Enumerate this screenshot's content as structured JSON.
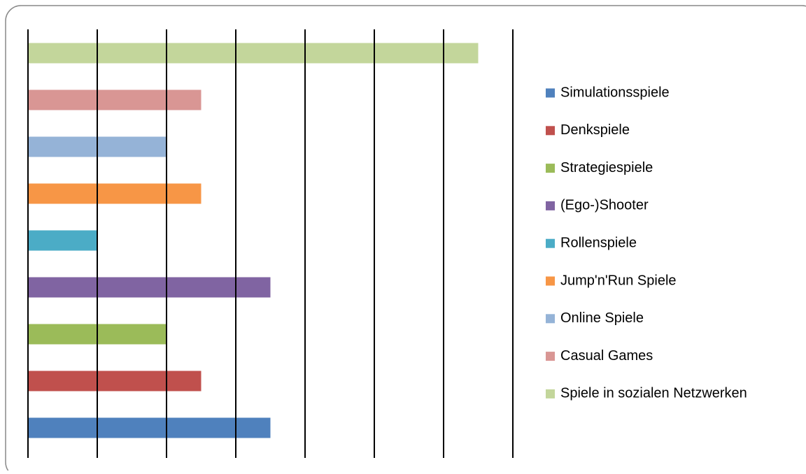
{
  "chart_data": {
    "type": "bar",
    "orientation": "horizontal",
    "series": [
      {
        "name": "Simulationsspiele",
        "color": "#4f81bd",
        "values": [
          3.5
        ]
      },
      {
        "name": "Denkspiele",
        "color": "#c0504d",
        "values": [
          2.5
        ]
      },
      {
        "name": "Strategiespiele",
        "color": "#9bbb59",
        "values": [
          2
        ]
      },
      {
        "name": "(Ego-)Shooter",
        "color": "#8064a2",
        "values": [
          3.5
        ]
      },
      {
        "name": "Rollenspiele",
        "color": "#4bacc6",
        "values": [
          1
        ]
      },
      {
        "name": "Jump'n'Run Spiele",
        "color": "#f79646",
        "values": [
          2.5
        ]
      },
      {
        "name": "Online Spiele",
        "color": "#95b3d7",
        "values": [
          2
        ]
      },
      {
        "name": "Casual Games",
        "color": "#d99694",
        "values": [
          2.5
        ]
      },
      {
        "name": "Spiele in sozialen Netzwerken",
        "color": "#c3d69b",
        "values": [
          6.5
        ]
      }
    ],
    "xlim": [
      0,
      7
    ],
    "xticks": [
      0,
      1,
      2,
      3,
      4,
      5,
      6,
      7
    ],
    "grid": true,
    "tick_labels": false,
    "legend": "right"
  }
}
